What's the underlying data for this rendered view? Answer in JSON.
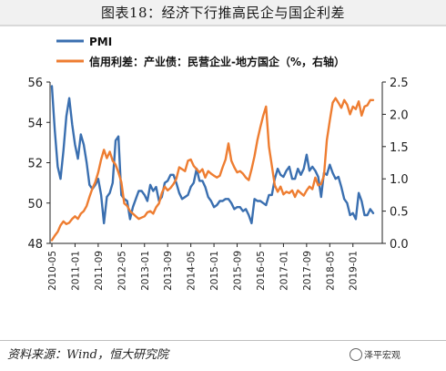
{
  "header": {
    "title": "图表18：经济下行推高民企与国企利差"
  },
  "footer": {
    "source": "资料来源：Wind，恒大研究院",
    "watermark": "泽平宏观"
  },
  "colors": {
    "pmi": "#3a6fb0",
    "spread": "#ee7d31"
  },
  "chart_data": {
    "type": "line",
    "y_left": {
      "lim": [
        48,
        56
      ],
      "ticks": [
        "48",
        "50",
        "52",
        "54",
        "56"
      ]
    },
    "y_right": {
      "lim": [
        0.0,
        2.5
      ],
      "ticks": [
        "0.0",
        "0.5",
        "1.0",
        "1.5",
        "2.0",
        "2.5"
      ]
    },
    "x_ticks": [
      "2010-05",
      "2011-01",
      "2011-09",
      "2012-05",
      "2013-01",
      "2013-09",
      "2014-05",
      "2015-01",
      "2015-09",
      "2016-05",
      "2017-01",
      "2017-09",
      "2018-05",
      "2019-01"
    ],
    "legend_position": "top-left",
    "series": [
      {
        "name": "PMI",
        "axis": "left",
        "dates": [
          "2010-05",
          "2010-06",
          "2010-07",
          "2010-08",
          "2010-09",
          "2010-10",
          "2010-11",
          "2010-12",
          "2011-01",
          "2011-02",
          "2011-03",
          "2011-04",
          "2011-05",
          "2011-06",
          "2011-07",
          "2011-08",
          "2011-09",
          "2011-10",
          "2011-11",
          "2011-12",
          "2012-01",
          "2012-02",
          "2012-03",
          "2012-04",
          "2012-05",
          "2012-06",
          "2012-07",
          "2012-08",
          "2012-09",
          "2012-10",
          "2012-11",
          "2012-12",
          "2013-01",
          "2013-02",
          "2013-03",
          "2013-04",
          "2013-05",
          "2013-06",
          "2013-07",
          "2013-08",
          "2013-09",
          "2013-10",
          "2013-11",
          "2013-12",
          "2014-01",
          "2014-02",
          "2014-03",
          "2014-04",
          "2014-05",
          "2014-06",
          "2014-07",
          "2014-08",
          "2014-09",
          "2014-10",
          "2014-11",
          "2014-12",
          "2015-01",
          "2015-02",
          "2015-03",
          "2015-04",
          "2015-05",
          "2015-06",
          "2015-07",
          "2015-08",
          "2015-09",
          "2015-10",
          "2015-11",
          "2015-12",
          "2016-01",
          "2016-02",
          "2016-03",
          "2016-04",
          "2016-05",
          "2016-06",
          "2016-07",
          "2016-08",
          "2016-09",
          "2016-10",
          "2016-11",
          "2016-12",
          "2017-01",
          "2017-02",
          "2017-03",
          "2017-04",
          "2017-05",
          "2017-06",
          "2017-07",
          "2017-08",
          "2017-09",
          "2017-10",
          "2017-11",
          "2017-12",
          "2018-01",
          "2018-02",
          "2018-03",
          "2018-04",
          "2018-05",
          "2018-06",
          "2018-07",
          "2018-08",
          "2018-09",
          "2018-10",
          "2018-11",
          "2018-12",
          "2019-01",
          "2019-02",
          "2019-03",
          "2019-04",
          "2019-05",
          "2019-06",
          "2019-07",
          "2019-08"
        ],
        "values": [
          55.8,
          53.6,
          51.8,
          51.2,
          52.6,
          54.3,
          55.2,
          53.9,
          52.9,
          52.2,
          53.4,
          52.9,
          52.0,
          50.9,
          50.7,
          50.9,
          51.2,
          50.4,
          49.0,
          50.3,
          50.5,
          51.0,
          53.1,
          53.3,
          50.4,
          50.2,
          50.1,
          49.2,
          49.8,
          50.2,
          50.6,
          50.6,
          50.4,
          50.1,
          50.9,
          50.6,
          50.8,
          50.1,
          50.3,
          51.0,
          51.1,
          51.4,
          51.4,
          51.0,
          50.5,
          50.2,
          50.3,
          50.4,
          50.8,
          51.0,
          51.7,
          51.1,
          51.1,
          50.8,
          50.3,
          50.1,
          49.8,
          49.9,
          50.1,
          50.1,
          50.2,
          50.2,
          50.0,
          49.7,
          49.8,
          49.8,
          49.6,
          49.7,
          49.4,
          49.0,
          50.2,
          50.1,
          50.1,
          50.0,
          49.9,
          50.4,
          50.4,
          51.2,
          51.7,
          51.4,
          51.3,
          51.6,
          51.8,
          51.2,
          51.2,
          51.7,
          51.4,
          51.7,
          52.4,
          51.6,
          51.8,
          51.6,
          51.3,
          50.3,
          51.5,
          51.4,
          51.9,
          51.5,
          51.2,
          51.3,
          50.8,
          50.2,
          50.0,
          49.4,
          49.5,
          49.2,
          50.5,
          50.1,
          49.4,
          49.4,
          49.7,
          49.5
        ]
      },
      {
        "name": "信用利差：产业债：民营企业-地方国企（%，右轴）",
        "axis": "right",
        "dates": [
          "2010-05",
          "2010-06",
          "2010-07",
          "2010-08",
          "2010-09",
          "2010-10",
          "2010-11",
          "2010-12",
          "2011-01",
          "2011-02",
          "2011-03",
          "2011-04",
          "2011-05",
          "2011-06",
          "2011-07",
          "2011-08",
          "2011-09",
          "2011-10",
          "2011-11",
          "2011-12",
          "2012-01",
          "2012-02",
          "2012-03",
          "2012-04",
          "2012-05",
          "2012-06",
          "2012-07",
          "2012-08",
          "2012-09",
          "2012-10",
          "2012-11",
          "2012-12",
          "2013-01",
          "2013-02",
          "2013-03",
          "2013-04",
          "2013-05",
          "2013-06",
          "2013-07",
          "2013-08",
          "2013-09",
          "2013-10",
          "2013-11",
          "2013-12",
          "2014-01",
          "2014-02",
          "2014-03",
          "2014-04",
          "2014-05",
          "2014-06",
          "2014-07",
          "2014-08",
          "2014-09",
          "2014-10",
          "2014-11",
          "2014-12",
          "2015-01",
          "2015-02",
          "2015-03",
          "2015-04",
          "2015-05",
          "2015-06",
          "2015-07",
          "2015-08",
          "2015-09",
          "2015-10",
          "2015-11",
          "2015-12",
          "2016-01",
          "2016-02",
          "2016-03",
          "2016-04",
          "2016-05",
          "2016-06",
          "2016-07",
          "2016-08",
          "2016-09",
          "2016-10",
          "2016-11",
          "2016-12",
          "2017-01",
          "2017-02",
          "2017-03",
          "2017-04",
          "2017-05",
          "2017-06",
          "2017-07",
          "2017-08",
          "2017-09",
          "2017-10",
          "2017-11",
          "2017-12",
          "2018-01",
          "2018-02",
          "2018-03",
          "2018-04",
          "2018-05",
          "2018-06",
          "2018-07",
          "2018-08",
          "2018-09",
          "2018-10",
          "2018-11",
          "2018-12",
          "2019-01",
          "2019-02",
          "2019-03",
          "2019-04",
          "2019-05",
          "2019-06",
          "2019-07",
          "2019-08"
        ],
        "values": [
          0.05,
          0.12,
          0.18,
          0.28,
          0.34,
          0.3,
          0.32,
          0.38,
          0.42,
          0.38,
          0.46,
          0.5,
          0.58,
          0.72,
          0.85,
          0.95,
          1.1,
          1.3,
          1.45,
          1.32,
          1.42,
          1.28,
          1.22,
          1.1,
          0.95,
          0.62,
          0.58,
          0.5,
          0.46,
          0.42,
          0.38,
          0.4,
          0.42,
          0.48,
          0.5,
          0.46,
          0.56,
          0.62,
          0.78,
          0.88,
          0.82,
          0.86,
          0.92,
          1.0,
          1.18,
          1.15,
          1.12,
          1.28,
          1.3,
          1.2,
          1.15,
          1.1,
          1.15,
          1.02,
          1.12,
          1.08,
          1.05,
          1.02,
          1.05,
          1.18,
          1.3,
          1.55,
          1.28,
          1.18,
          1.1,
          1.12,
          1.08,
          1.02,
          0.98,
          1.15,
          1.35,
          1.6,
          1.8,
          1.98,
          2.12,
          1.5,
          1.2,
          0.9,
          0.8,
          0.88,
          0.76,
          0.8,
          0.78,
          0.82,
          0.72,
          0.82,
          0.78,
          0.74,
          0.82,
          0.88,
          0.84,
          1.02,
          0.9,
          0.92,
          1.05,
          1.6,
          1.9,
          2.18,
          2.25,
          2.18,
          2.1,
          2.22,
          2.15,
          2.0,
          2.12,
          2.08,
          2.2,
          1.98,
          2.12,
          2.14,
          2.22,
          2.22
        ]
      }
    ]
  }
}
